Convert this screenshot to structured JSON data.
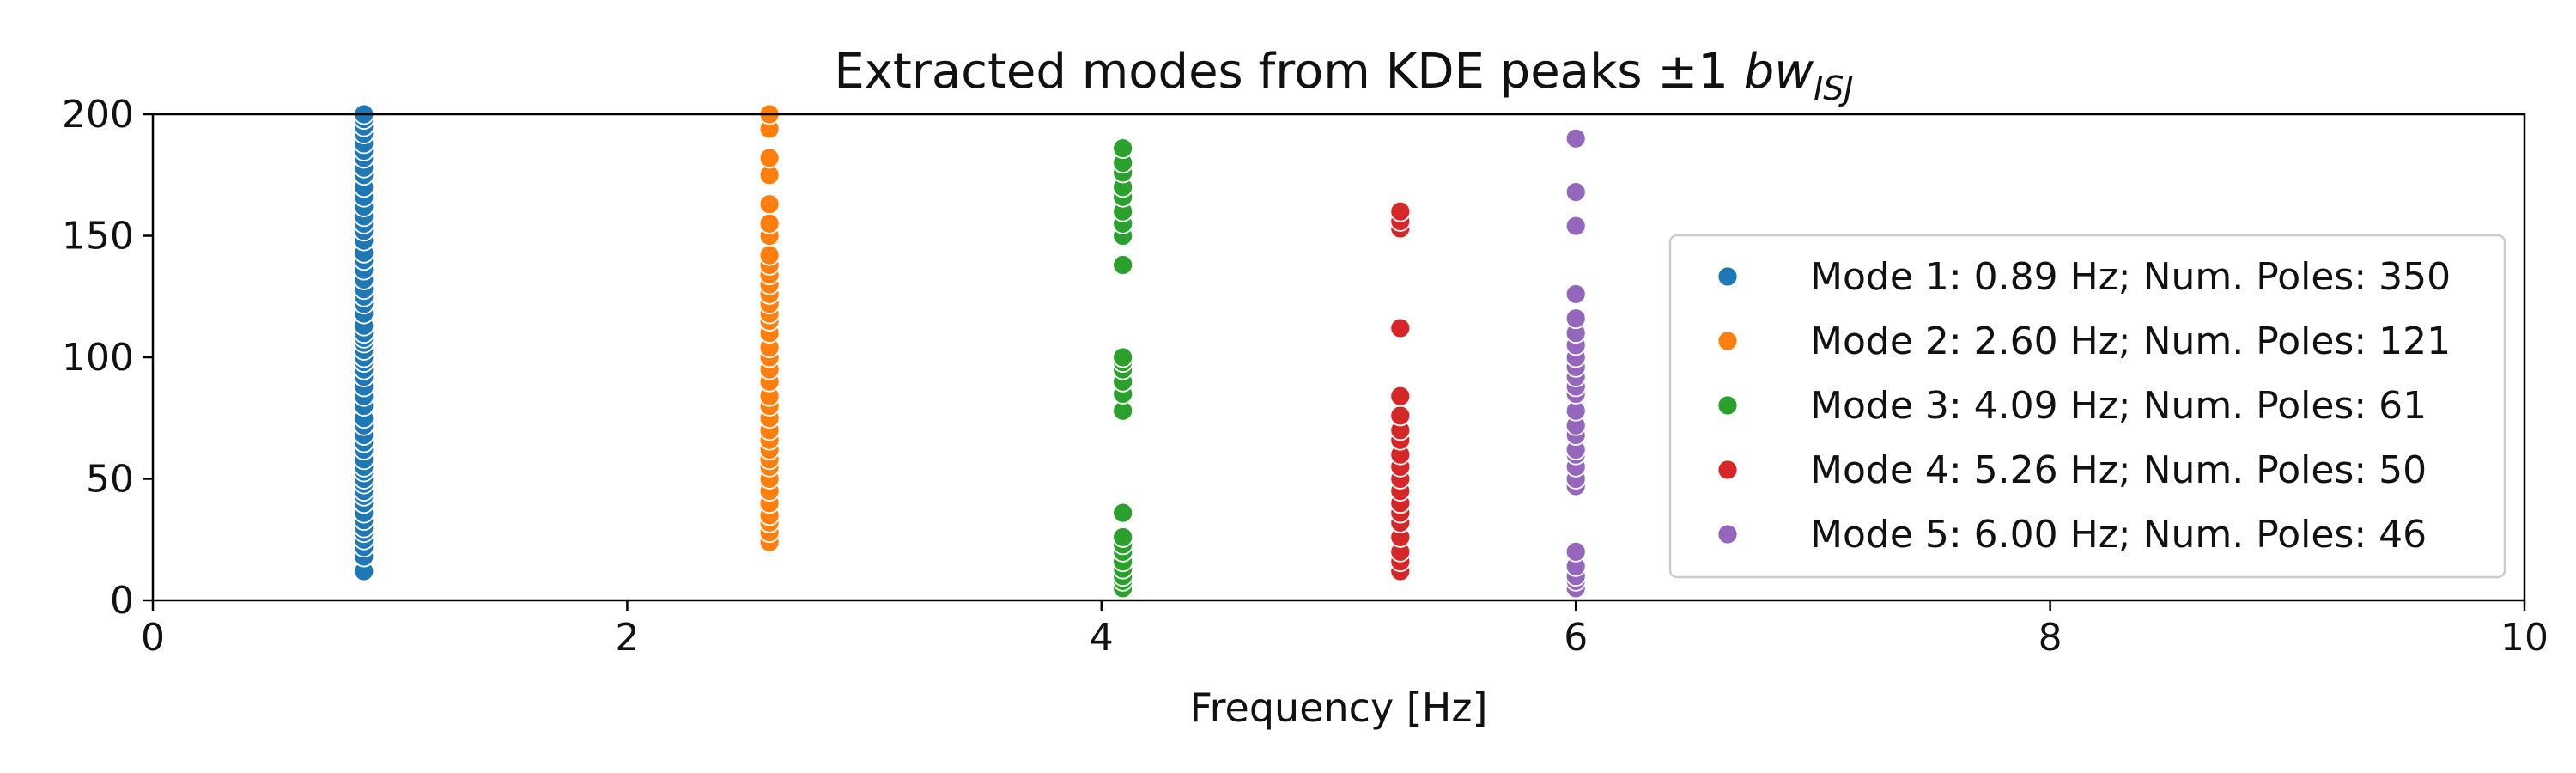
{
  "chart_data": {
    "type": "scatter",
    "title_main": "Extracted modes from KDE peaks ±1 ",
    "title_math": "bw",
    "title_sub": "ISJ",
    "xlabel": "Frequency [Hz]",
    "ylabel": "",
    "xlim": [
      0,
      10
    ],
    "ylim": [
      0,
      200
    ],
    "xticks": [
      "0",
      "2",
      "4",
      "6",
      "8",
      "10"
    ],
    "yticks": [
      "0",
      "50",
      "100",
      "150",
      "200"
    ],
    "legend_position": "right",
    "grid": false,
    "series": [
      {
        "name": "Mode 1: 0.89 Hz; Num. Poles: 350",
        "color": "#1f77b4",
        "x": 0.89,
        "y": [
          12,
          18,
          22,
          25,
          28,
          30,
          33,
          36,
          40,
          43,
          45,
          48,
          50,
          53,
          55,
          58,
          62,
          65,
          68,
          72,
          75,
          80,
          84,
          88,
          92,
          95,
          98,
          100,
          103,
          106,
          108,
          110,
          113,
          118,
          122,
          125,
          128,
          132,
          136,
          140,
          143,
          148,
          152,
          155,
          158,
          162,
          166,
          170,
          175,
          178,
          182,
          185,
          188,
          192,
          195,
          198,
          200
        ]
      },
      {
        "name": "Mode 2: 2.60 Hz; Num. Poles: 121",
        "color": "#ff7f0e",
        "x": 2.6,
        "y": [
          24,
          28,
          32,
          35,
          40,
          45,
          50,
          55,
          58,
          62,
          66,
          70,
          75,
          80,
          84,
          90,
          95,
          100,
          104,
          110,
          115,
          118,
          122,
          126,
          130,
          134,
          138,
          142,
          150,
          155,
          163,
          175,
          182,
          194,
          200
        ]
      },
      {
        "name": "Mode 3: 4.09 Hz; Num. Poles: 61",
        "color": "#2ca02c",
        "x": 4.09,
        "y": [
          5,
          8,
          10,
          13,
          16,
          20,
          23,
          26,
          36,
          78,
          85,
          90,
          95,
          98,
          100,
          138,
          150,
          155,
          160,
          166,
          170,
          176,
          180,
          186
        ]
      },
      {
        "name": "Mode 4: 5.26 Hz; Num. Poles: 50",
        "color": "#d62728",
        "x": 5.26,
        "y": [
          12,
          16,
          20,
          26,
          32,
          36,
          40,
          45,
          50,
          55,
          60,
          66,
          70,
          76,
          84,
          112,
          153,
          156,
          160
        ]
      },
      {
        "name": "Mode 5: 6.00 Hz; Num. Poles: 46",
        "color": "#9467bd",
        "x": 6.0,
        "y": [
          5,
          8,
          10,
          14,
          20,
          47,
          50,
          55,
          60,
          62,
          68,
          72,
          78,
          85,
          88,
          92,
          96,
          100,
          105,
          110,
          116,
          126,
          154,
          168,
          190
        ]
      }
    ]
  }
}
